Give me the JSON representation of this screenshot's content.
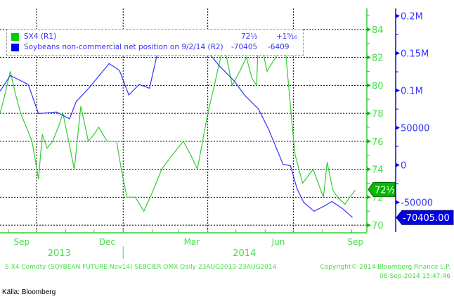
{
  "legend": {
    "items": [
      {
        "label": "SX4 (R1)",
        "last": "72½",
        "change": "+1⁹⁄₁₆",
        "color": "#00cc00"
      },
      {
        "label": "Soybeans non-commercial net position on 9/2/14 (R2)",
        "last": "-70405",
        "change": "-6409",
        "color": "#0000ff"
      }
    ]
  },
  "footer": {
    "left": "S X4 Comdty (SOYBEAN FUTURE    Nov14) SEBCIER OMX  Daily 23AUG2013-23AUG2014",
    "copyright": "Copyright© 2014 Bloomberg Finance L.P.",
    "timestamp": "06-Sep-2014 15:47:46",
    "source": "Källa: Bloomberg"
  },
  "chart_data": {
    "type": "line",
    "x_range": [
      "2013-08-23",
      "2014-09-06"
    ],
    "month_labels": [
      {
        "label": "Sep",
        "date": "2013-09-15"
      },
      {
        "label": "Dec",
        "date": "2013-12-15"
      },
      {
        "label": "Mar",
        "date": "2014-03-15"
      },
      {
        "label": "Jun",
        "date": "2014-06-15"
      },
      {
        "label": "Sep",
        "date": "2014-09-05"
      }
    ],
    "year_labels": [
      {
        "label": "2013",
        "date": "2013-10-25"
      },
      {
        "label": "2014",
        "date": "2014-05-10"
      }
    ],
    "gridlines_x": [
      "2013-10-01",
      "2014-01-01",
      "2014-04-01",
      "2014-07-01"
    ],
    "axis_left": {
      "name": "R1",
      "ylim": [
        69.5,
        85.5
      ],
      "ticks": [
        70,
        72,
        74,
        76,
        78,
        80,
        82,
        84
      ],
      "last_label": "72½",
      "last_value": 72.5
    },
    "axis_right": {
      "name": "R2",
      "ylim": [
        -90000,
        210000
      ],
      "ticks": [
        {
          "v": -50000,
          "t": "-50000"
        },
        {
          "v": 0,
          "t": "0"
        },
        {
          "v": 50000,
          "t": "50000"
        },
        {
          "v": 100000,
          "t": "0.1M"
        },
        {
          "v": 150000,
          "t": "0.15M"
        },
        {
          "v": 200000,
          "t": "0.2M"
        }
      ],
      "last_label": "-70405.00",
      "last_value": -70405
    },
    "series": [
      {
        "name": "SX4 (R1)",
        "axis": "left",
        "color": "#33cc33",
        "points": [
          [
            "2013-08-23",
            78
          ],
          [
            "2013-08-27",
            79
          ],
          [
            "2013-09-03",
            81
          ],
          [
            "2013-09-08",
            79.5
          ],
          [
            "2013-09-14",
            78
          ],
          [
            "2013-09-20",
            77
          ],
          [
            "2013-09-26",
            76
          ],
          [
            "2013-10-03",
            73.3
          ],
          [
            "2013-10-07",
            76.5
          ],
          [
            "2013-10-12",
            75.5
          ],
          [
            "2013-10-18",
            76
          ],
          [
            "2013-10-24",
            77
          ],
          [
            "2013-10-29",
            78
          ],
          [
            "2013-11-04",
            76
          ],
          [
            "2013-11-10",
            74
          ],
          [
            "2013-11-17",
            78.5
          ],
          [
            "2013-11-25",
            76
          ],
          [
            "2013-12-01",
            76.5
          ],
          [
            "2013-12-06",
            77
          ],
          [
            "2013-12-15",
            76
          ],
          [
            "2013-12-25",
            76
          ],
          [
            "2013-12-30",
            74
          ],
          [
            "2014-01-05",
            72
          ],
          [
            "2014-01-14",
            72
          ],
          [
            "2014-01-23",
            71
          ],
          [
            "2014-02-02",
            72.5
          ],
          [
            "2014-02-11",
            74
          ],
          [
            "2014-02-22",
            75
          ],
          [
            "2014-03-06",
            76
          ],
          [
            "2014-03-14",
            75
          ],
          [
            "2014-03-21",
            74
          ],
          [
            "2014-04-01",
            78
          ],
          [
            "2014-04-08",
            80
          ],
          [
            "2014-04-18",
            83
          ],
          [
            "2014-04-27",
            80
          ],
          [
            "2014-05-05",
            81
          ],
          [
            "2014-05-12",
            82
          ],
          [
            "2014-05-18",
            80.5
          ],
          [
            "2014-05-23",
            80
          ],
          [
            "2014-05-25",
            84
          ],
          [
            "2014-06-03",
            81
          ],
          [
            "2014-06-12",
            82
          ],
          [
            "2014-06-22",
            83
          ],
          [
            "2014-06-30",
            77
          ],
          [
            "2014-07-03",
            75
          ],
          [
            "2014-07-11",
            73
          ],
          [
            "2014-07-22",
            74
          ],
          [
            "2014-08-02",
            72
          ],
          [
            "2014-08-06",
            74.5
          ],
          [
            "2014-08-12",
            72.5
          ],
          [
            "2014-08-17",
            72
          ],
          [
            "2014-08-25",
            71.5
          ],
          [
            "2014-08-30",
            72
          ],
          [
            "2014-09-05",
            72.5
          ]
        ]
      },
      {
        "name": "Soybeans non-commercial net position (R2)",
        "axis": "right",
        "color": "#3333ff",
        "points": [
          [
            "2013-08-23",
            99000
          ],
          [
            "2013-09-03",
            120000
          ],
          [
            "2013-09-22",
            108000
          ],
          [
            "2013-10-03",
            69000
          ],
          [
            "2013-10-22",
            71000
          ],
          [
            "2013-11-05",
            62000
          ],
          [
            "2013-11-12",
            85000
          ],
          [
            "2013-11-26",
            104000
          ],
          [
            "2013-12-17",
            136000
          ],
          [
            "2013-12-28",
            127000
          ],
          [
            "2014-01-07",
            94000
          ],
          [
            "2014-01-18",
            108000
          ],
          [
            "2014-01-29",
            103000
          ],
          [
            "2014-02-09",
            164000
          ],
          [
            "2014-02-24",
            180000
          ],
          [
            "2014-03-08",
            173000
          ],
          [
            "2014-03-30",
            155000
          ],
          [
            "2014-04-14",
            132000
          ],
          [
            "2014-04-29",
            113000
          ],
          [
            "2014-05-10",
            94000
          ],
          [
            "2014-05-25",
            75000
          ],
          [
            "2014-06-05",
            47000
          ],
          [
            "2014-06-20",
            1000
          ],
          [
            "2014-06-28",
            -1000
          ],
          [
            "2014-07-05",
            -32000
          ],
          [
            "2014-07-12",
            -50000
          ],
          [
            "2014-07-23",
            -62000
          ],
          [
            "2014-08-03",
            -55000
          ],
          [
            "2014-08-11",
            -49000
          ],
          [
            "2014-08-22",
            -58000
          ],
          [
            "2014-09-02",
            -70405
          ]
        ]
      }
    ]
  }
}
